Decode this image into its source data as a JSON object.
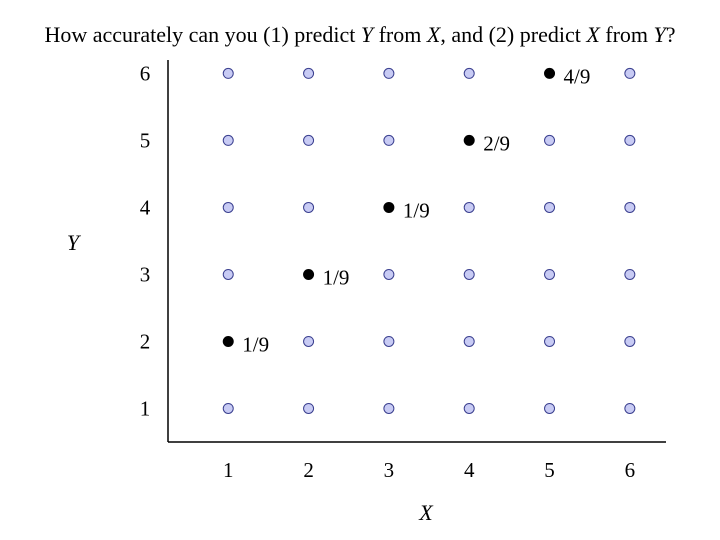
{
  "title": {
    "p1": "How accurately can you (1) predict ",
    "v1": "Y",
    "p2": " from ",
    "v2": "X",
    "p3": ", and (2) predict ",
    "v3": "X",
    "p4": " from ",
    "v4": "Y",
    "p5": "?"
  },
  "chart_data": {
    "type": "scatter",
    "title": "How accurately can you (1) predict Y from X, and (2) predict X from Y?",
    "xlabel": "X",
    "ylabel": "Y",
    "x_ticks": [
      "1",
      "2",
      "3",
      "4",
      "5",
      "6"
    ],
    "y_ticks": [
      "1",
      "2",
      "3",
      "4",
      "5",
      "6"
    ],
    "xlim": [
      0.25,
      6.45
    ],
    "ylim": [
      0.5,
      6.2
    ],
    "grid": false,
    "background_points": {
      "x": [
        1,
        2,
        3,
        4,
        5,
        6
      ],
      "y": [
        1,
        2,
        3,
        4,
        5,
        6
      ],
      "color": "#c8cbf4",
      "edge_color": "#3a3f8f"
    },
    "highlighted_points": [
      {
        "x": 1,
        "y": 2,
        "label": "1/9"
      },
      {
        "x": 2,
        "y": 3,
        "label": "1/9"
      },
      {
        "x": 3,
        "y": 4,
        "label": "1/9"
      },
      {
        "x": 4,
        "y": 5,
        "label": "2/9"
      },
      {
        "x": 5,
        "y": 6,
        "label": "4/9"
      }
    ],
    "highlight_color": "#000000"
  }
}
